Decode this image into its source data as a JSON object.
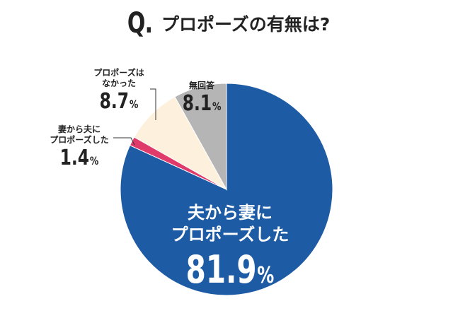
{
  "title": {
    "q": "Q.",
    "text": "プロポーズの有無は?"
  },
  "chart_data": {
    "type": "pie",
    "start_angle_deg": 0,
    "direction": "clockwise",
    "slices": [
      {
        "label_lines": [
          "夫から妻に",
          "プロポーズした"
        ],
        "value": 81.9,
        "display": "81.9",
        "unit": "%",
        "color": "#1e5ba5"
      },
      {
        "label_lines": [
          "妻から夫に",
          "プロポーズした"
        ],
        "value": 1.4,
        "display": "1.4",
        "unit": "%",
        "color": "#e03a6a"
      },
      {
        "label_lines": [
          "プロポーズは",
          "なかった"
        ],
        "value": 8.7,
        "display": "8.7",
        "unit": "%",
        "color": "#fdf0dc"
      },
      {
        "label_lines": [
          "無回答"
        ],
        "value": 8.1,
        "display": "8.1",
        "unit": "%",
        "color": "#b5b5b5"
      }
    ]
  }
}
